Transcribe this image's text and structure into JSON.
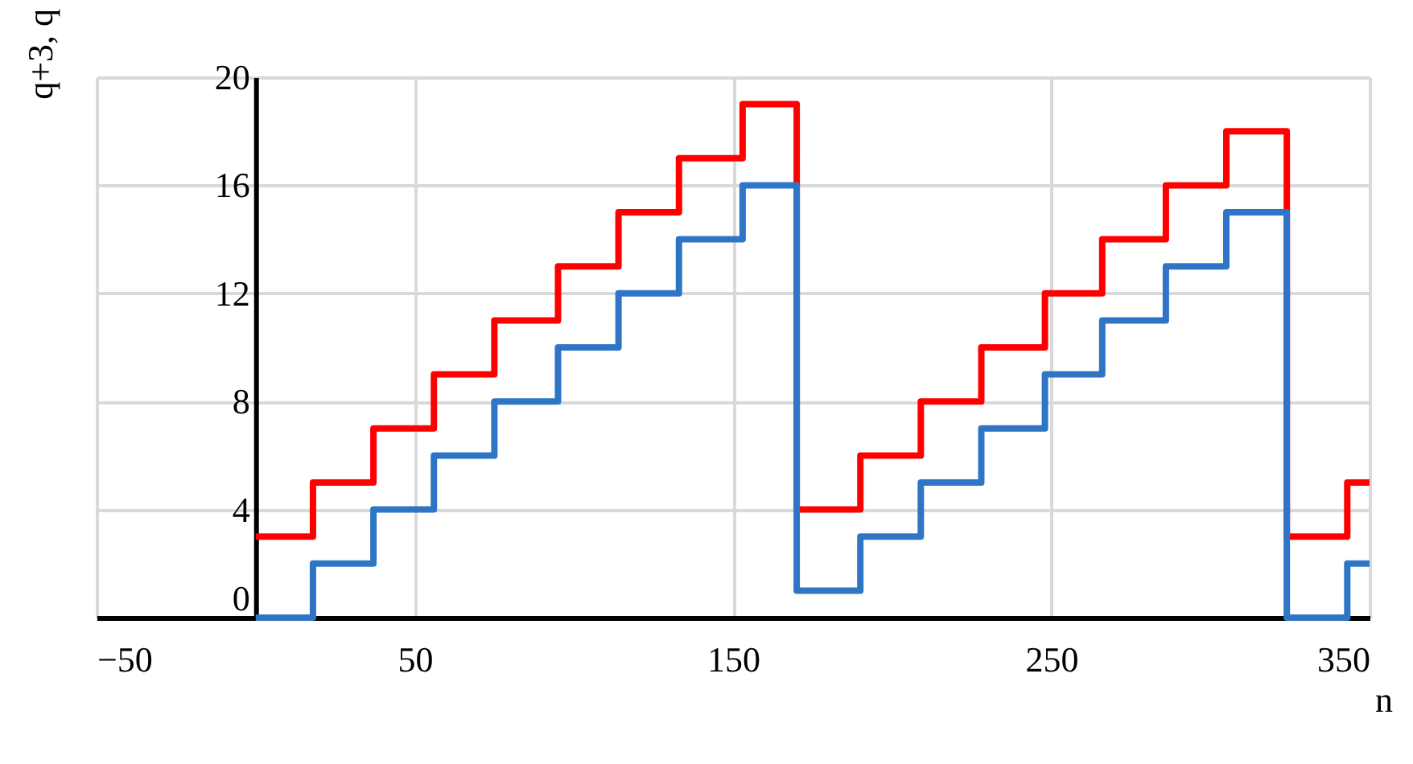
{
  "chart_data": {
    "type": "step",
    "xlabel": "n",
    "ylabel": "q+3, q",
    "x": [
      0,
      18,
      37,
      56,
      75,
      95,
      114,
      133,
      153,
      170,
      190,
      209,
      228,
      248,
      266,
      286,
      305,
      324,
      343,
      350
    ],
    "series": [
      {
        "color": "#ff0000",
        "values": [
          3,
          5,
          7,
          9,
          11,
          13,
          15,
          17,
          19,
          4,
          6,
          8,
          10,
          12,
          14,
          16,
          18,
          3,
          5,
          5
        ]
      },
      {
        "color": "#2e75c6",
        "values": [
          0,
          2,
          4,
          6,
          8,
          10,
          12,
          14,
          16,
          1,
          3,
          5,
          7,
          9,
          11,
          13,
          15,
          0,
          2,
          2
        ]
      }
    ],
    "xlim": [
      -50,
      350
    ],
    "xticks": [
      -50,
      50,
      150,
      250,
      350
    ],
    "ylim": [
      0,
      20
    ],
    "yticks": [
      0,
      4,
      8,
      12,
      16,
      20
    ],
    "grid": true,
    "legend": false,
    "marker": "none",
    "line_style": "solid"
  }
}
